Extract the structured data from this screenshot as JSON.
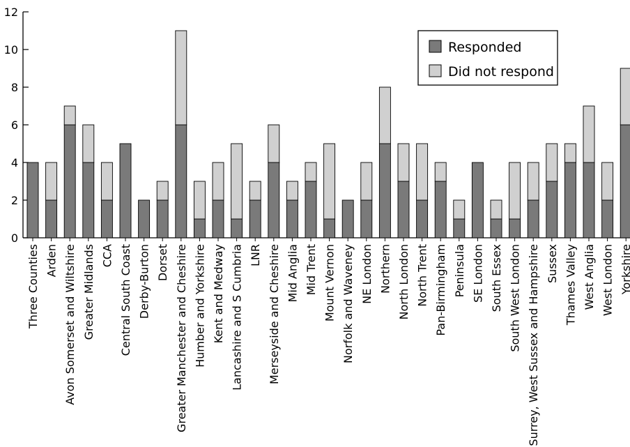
{
  "chart_data": {
    "type": "bar",
    "stacked": true,
    "categories": [
      "Three Counties",
      "Arden",
      "Avon Somerset and Wiltshire",
      "Greater Midlands",
      "CCA",
      "Central South Coast",
      "Derby-Burton",
      "Dorset",
      "Greater Manchester and Cheshire",
      "Humber and Yorkshire",
      "Kent and Medway",
      "Lancashire and S Cumbria",
      "LNR",
      "Merseyside and Cheshire",
      "Mid Anglia",
      "Mid Trent",
      "Mount Vernon",
      "Norfolk and Waveney",
      "NE London",
      "Northern",
      "North London",
      "North Trent",
      "Pan-Birmingham",
      "Peninsula",
      "SE London",
      "South Essex",
      "South West London",
      "Surrey, West Sussex and Hampshire",
      "Sussex",
      "Thames Valley",
      "West Anglia",
      "West London",
      "Yorkshire"
    ],
    "series": [
      {
        "name": "Responded",
        "color": "#7a7a7a",
        "values": [
          4,
          2,
          6,
          4,
          2,
          5,
          2,
          2,
          6,
          1,
          2,
          1,
          2,
          4,
          2,
          3,
          1,
          2,
          2,
          5,
          3,
          2,
          3,
          1,
          4,
          1,
          1,
          2,
          3,
          4,
          4,
          2,
          6
        ]
      },
      {
        "name": "Did not respond",
        "color": "#d0d0d0",
        "values": [
          0,
          2,
          1,
          2,
          2,
          0,
          0,
          1,
          5,
          2,
          2,
          4,
          1,
          2,
          1,
          1,
          4,
          0,
          2,
          3,
          2,
          3,
          1,
          1,
          0,
          1,
          3,
          2,
          2,
          1,
          3,
          2,
          3
        ]
      }
    ],
    "ylim": [
      0,
      12
    ],
    "yticks": [
      "0",
      "2",
      "4",
      "6",
      "8",
      "10",
      "12"
    ],
    "legend_position": "top-right",
    "grid": false
  }
}
